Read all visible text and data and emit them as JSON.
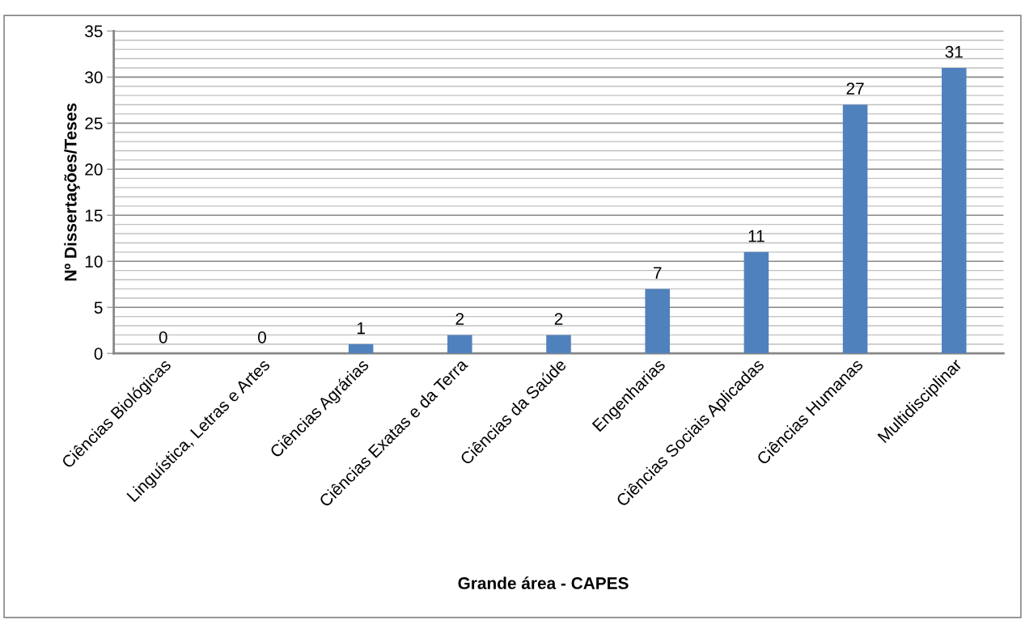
{
  "chart_data": {
    "type": "bar",
    "xlabel": "Grande área - CAPES",
    "ylabel": "Nº Dissertações/Teses",
    "categories": [
      "Ciências Biológicas",
      "Linguística, Letras e Artes",
      "Ciências Agrárias",
      "Ciências Exatas e da Terra",
      "Ciências da Saúde",
      "Engenharias",
      "Ciências Sociais Aplicadas",
      "Ciências Humanas",
      "Multidisciplinar"
    ],
    "values": [
      0,
      0,
      1,
      2,
      2,
      7,
      11,
      27,
      31
    ],
    "color": "#4f81bd",
    "ylim": [
      0,
      35
    ],
    "yticks": [
      0,
      {
        "value": 1,
        "label": null
      },
      {
        "value": 2,
        "label": null
      },
      {
        "value": 3,
        "label": null
      },
      {
        "value": 4,
        "label": null
      },
      5,
      {
        "value": 6,
        "label": null
      },
      {
        "value": 7,
        "label": null
      },
      {
        "value": 8,
        "label": null
      },
      {
        "value": 9,
        "label": null
      },
      10,
      {
        "value": 11,
        "label": null
      },
      {
        "value": 12,
        "label": null
      },
      {
        "value": 13,
        "label": null
      },
      {
        "value": 14,
        "label": null
      },
      15,
      {
        "value": 16,
        "label": null
      },
      {
        "value": 17,
        "label": null
      },
      {
        "value": 18,
        "label": null
      },
      {
        "value": 19,
        "label": null
      },
      20,
      {
        "value": 21,
        "label": null
      },
      {
        "value": 22,
        "label": null
      },
      {
        "value": 23,
        "label": null
      },
      {
        "value": 24,
        "label": null
      },
      25,
      {
        "value": 26,
        "label": null
      },
      {
        "value": 27,
        "label": null
      },
      {
        "value": 28,
        "label": null
      },
      {
        "value": 29,
        "label": null
      },
      30,
      {
        "value": 31,
        "label": null
      },
      {
        "value": 32,
        "label": null
      },
      {
        "value": 33,
        "label": null
      },
      {
        "value": 34,
        "label": null
      },
      35
    ],
    "grid": "y",
    "data_labels": true
  }
}
